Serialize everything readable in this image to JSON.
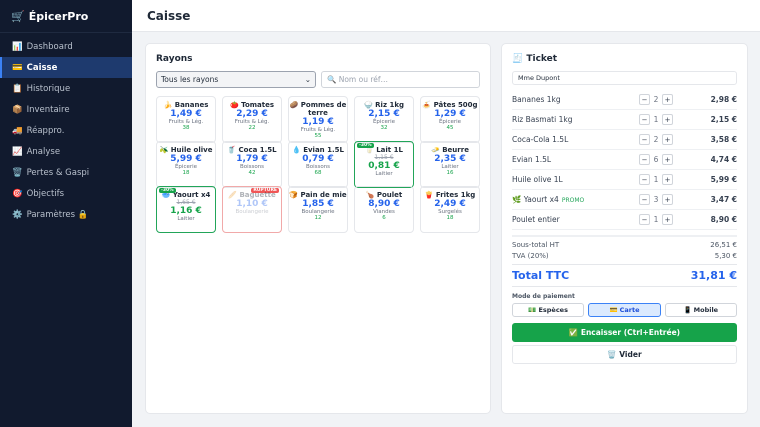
{
  "app": {
    "name": "ÉpicerPro",
    "icon": "🛒"
  },
  "sidebar": {
    "items": [
      {
        "icon": "📊",
        "label": "Dashboard"
      },
      {
        "icon": "💳",
        "label": "Caisse",
        "active": true
      },
      {
        "icon": "📋",
        "label": "Historique"
      },
      {
        "icon": "📦",
        "label": "Inventaire"
      },
      {
        "icon": "🚚",
        "label": "Réappro."
      },
      {
        "icon": "📈",
        "label": "Analyse"
      },
      {
        "icon": "🗑️",
        "label": "Pertes & Gaspi"
      },
      {
        "icon": "🎯",
        "label": "Objectifs"
      },
      {
        "icon": "⚙️",
        "label": "Paramètres 🔒"
      }
    ]
  },
  "header": {
    "title": "Caisse"
  },
  "rayons": {
    "title": "Rayons",
    "filter": "Tous les rayons",
    "search_placeholder": "🔍 Nom ou réf…",
    "products": [
      {
        "icon": "🍌",
        "name": "Bananes",
        "price": "1,49 €",
        "cat": "Fruits & Lég.",
        "stock": "38"
      },
      {
        "icon": "🍅",
        "name": "Tomates",
        "price": "2,29 €",
        "cat": "Fruits & Lég.",
        "stock": "22"
      },
      {
        "icon": "🥔",
        "name": "Pommes de terre",
        "price": "1,19 €",
        "cat": "Fruits & Lég.",
        "stock": "55"
      },
      {
        "icon": "🍚",
        "name": "Riz 1kg",
        "price": "2,15 €",
        "cat": "Épicerie",
        "stock": "32"
      },
      {
        "icon": "🍝",
        "name": "Pâtes 500g",
        "price": "1,29 €",
        "cat": "Épicerie",
        "stock": "45"
      },
      {
        "icon": "🫒",
        "name": "Huile olive",
        "price": "5,99 €",
        "cat": "Épicerie",
        "stock": "18"
      },
      {
        "icon": "🥤",
        "name": "Coca 1.5L",
        "price": "1,79 €",
        "cat": "Boissons",
        "stock": "42"
      },
      {
        "icon": "💧",
        "name": "Evian 1.5L",
        "price": "0,79 €",
        "cat": "Boissons",
        "stock": "68"
      },
      {
        "icon": "🥛",
        "name": "Lait 1L",
        "old": "1,15 €",
        "price": "0,81 €",
        "cat": "Laitier",
        "badge": "-30%",
        "promo": true
      },
      {
        "icon": "🧈",
        "name": "Beurre",
        "price": "2,35 €",
        "cat": "Laitier",
        "stock": "16"
      },
      {
        "icon": "🥣",
        "name": "Yaourt x4",
        "old": "1,65 €",
        "price": "1,16 €",
        "cat": "Laitier",
        "badge": "-30%",
        "promo": true
      },
      {
        "icon": "🥖",
        "name": "Baguette",
        "price": "1,10 €",
        "cat": "Boulangerie",
        "badge": "RUPTURE",
        "out": true
      },
      {
        "icon": "🍞",
        "name": "Pain de mie",
        "price": "1,85 €",
        "cat": "Boulangerie",
        "stock": "12"
      },
      {
        "icon": "🍗",
        "name": "Poulet",
        "price": "8,90 €",
        "cat": "Viandes",
        "stock": "6"
      },
      {
        "icon": "🍟",
        "name": "Frites 1kg",
        "price": "2,49 €",
        "cat": "Surgelés",
        "stock": "18"
      }
    ]
  },
  "ticket": {
    "title": "Ticket",
    "icon": "🧾",
    "client": "Mme Dupont",
    "lines": [
      {
        "name": "Bananes 1kg",
        "qty": "2",
        "total": "2,98 €"
      },
      {
        "name": "Riz Basmati 1kg",
        "qty": "1",
        "total": "2,15 €"
      },
      {
        "name": "Coca-Cola 1.5L",
        "qty": "2",
        "total": "3,58 €"
      },
      {
        "name": "Evian 1.5L",
        "qty": "6",
        "total": "4,74 €"
      },
      {
        "name": "Huile olive 1L",
        "qty": "1",
        "total": "5,99 €"
      },
      {
        "name": "🌿 Yaourt x4",
        "tag": "PROMO",
        "qty": "3",
        "total": "3,47 €"
      },
      {
        "name": "Poulet entier",
        "qty": "1",
        "total": "8,90 €"
      }
    ],
    "subtotal_label": "Sous-total HT",
    "subtotal": "26,51 €",
    "tva_label": "TVA (20%)",
    "tva": "5,30 €",
    "total_label": "Total TTC",
    "total": "31,81 €",
    "payment_label": "Mode de paiement",
    "payments": [
      {
        "icon": "💵",
        "label": "Espèces"
      },
      {
        "icon": "💳",
        "label": "Carte",
        "selected": true
      },
      {
        "icon": "📱",
        "label": "Mobile"
      }
    ],
    "pay_button": "✅ Encaisser (Ctrl+Entrée)",
    "clear_button": "🗑️ Vider"
  }
}
